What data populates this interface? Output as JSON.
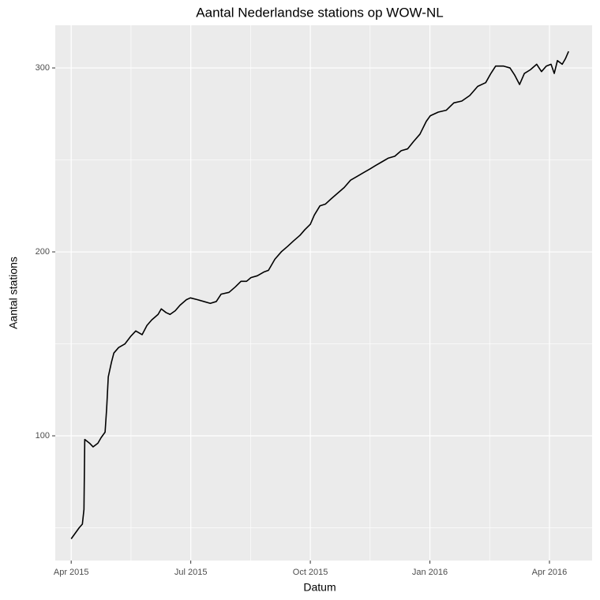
{
  "chart_data": {
    "type": "line",
    "title": "Aantal Nederlandse stations op WOW-NL",
    "x_label": "Datum",
    "y_label": "Aantal stations",
    "x": [
      0,
      0.1,
      0.2,
      0.28,
      0.32,
      0.34,
      0.4,
      0.46,
      0.55,
      0.67,
      0.75,
      0.85,
      0.89,
      0.93,
      1.01,
      1.07,
      1.19,
      1.35,
      1.49,
      1.62,
      1.78,
      1.9,
      2.02,
      2.18,
      2.26,
      2.38,
      2.48,
      2.61,
      2.73,
      2.89,
      2.99,
      3.17,
      3.33,
      3.49,
      3.64,
      3.76,
      3.96,
      4.12,
      4.26,
      4.4,
      4.51,
      4.67,
      4.83,
      4.95,
      5.11,
      5.27,
      5.43,
      5.58,
      5.74,
      5.86,
      6,
      6.1,
      6.24,
      6.38,
      6.53,
      6.69,
      6.85,
      7.01,
      7.17,
      7.33,
      7.49,
      7.64,
      7.8,
      7.96,
      8.12,
      8.28,
      8.44,
      8.59,
      8.75,
      8.91,
      9.01,
      9.21,
      9.41,
      9.6,
      9.8,
      10,
      10.2,
      10.4,
      10.53,
      10.65,
      10.85,
      11.01,
      11.13,
      11.25,
      11.37,
      11.52,
      11.68,
      11.8,
      11.92,
      12.04,
      12.12,
      12.2,
      12.32,
      12.4,
      12.48
    ],
    "series": [
      {
        "name": "Aantal stations",
        "color": "#000000",
        "values": [
          44,
          47,
          50,
          52,
          60,
          98,
          97,
          96,
          94,
          96,
          99,
          102,
          115,
          132,
          140,
          145,
          148,
          150,
          154,
          157,
          155,
          160,
          163,
          166,
          169,
          167,
          166,
          168,
          171,
          174,
          175,
          174,
          173,
          172,
          173,
          177,
          178,
          181,
          184,
          184,
          186,
          187,
          189,
          190,
          196,
          200,
          203,
          206,
          209,
          212,
          215,
          220,
          225,
          226,
          229,
          232,
          235,
          239,
          241,
          243,
          245,
          247,
          249,
          251,
          252,
          255,
          256,
          260,
          264,
          271,
          274,
          276,
          277,
          281,
          282,
          285,
          290,
          292,
          297,
          301,
          301,
          300,
          296,
          291,
          297,
          299,
          302,
          298,
          301,
          302,
          297,
          304,
          302,
          305,
          309
        ]
      }
    ],
    "xlim": [
      -0.4,
      13.07
    ],
    "xticks": [
      {
        "value": 0,
        "label": "Apr 2015"
      },
      {
        "value": 3,
        "label": "Jul 2015"
      },
      {
        "value": 6,
        "label": "Oct 2015"
      },
      {
        "value": 9,
        "label": "Jan 2016"
      },
      {
        "value": 12,
        "label": "Apr 2016"
      }
    ],
    "x_minor_grid": [
      1.5,
      4.5,
      7.5,
      10.5
    ],
    "ylim": [
      32.2,
      323.2
    ],
    "yticks": [
      100,
      200,
      300
    ],
    "y_minor_grid": [
      50,
      150,
      250
    ],
    "grid": true
  }
}
